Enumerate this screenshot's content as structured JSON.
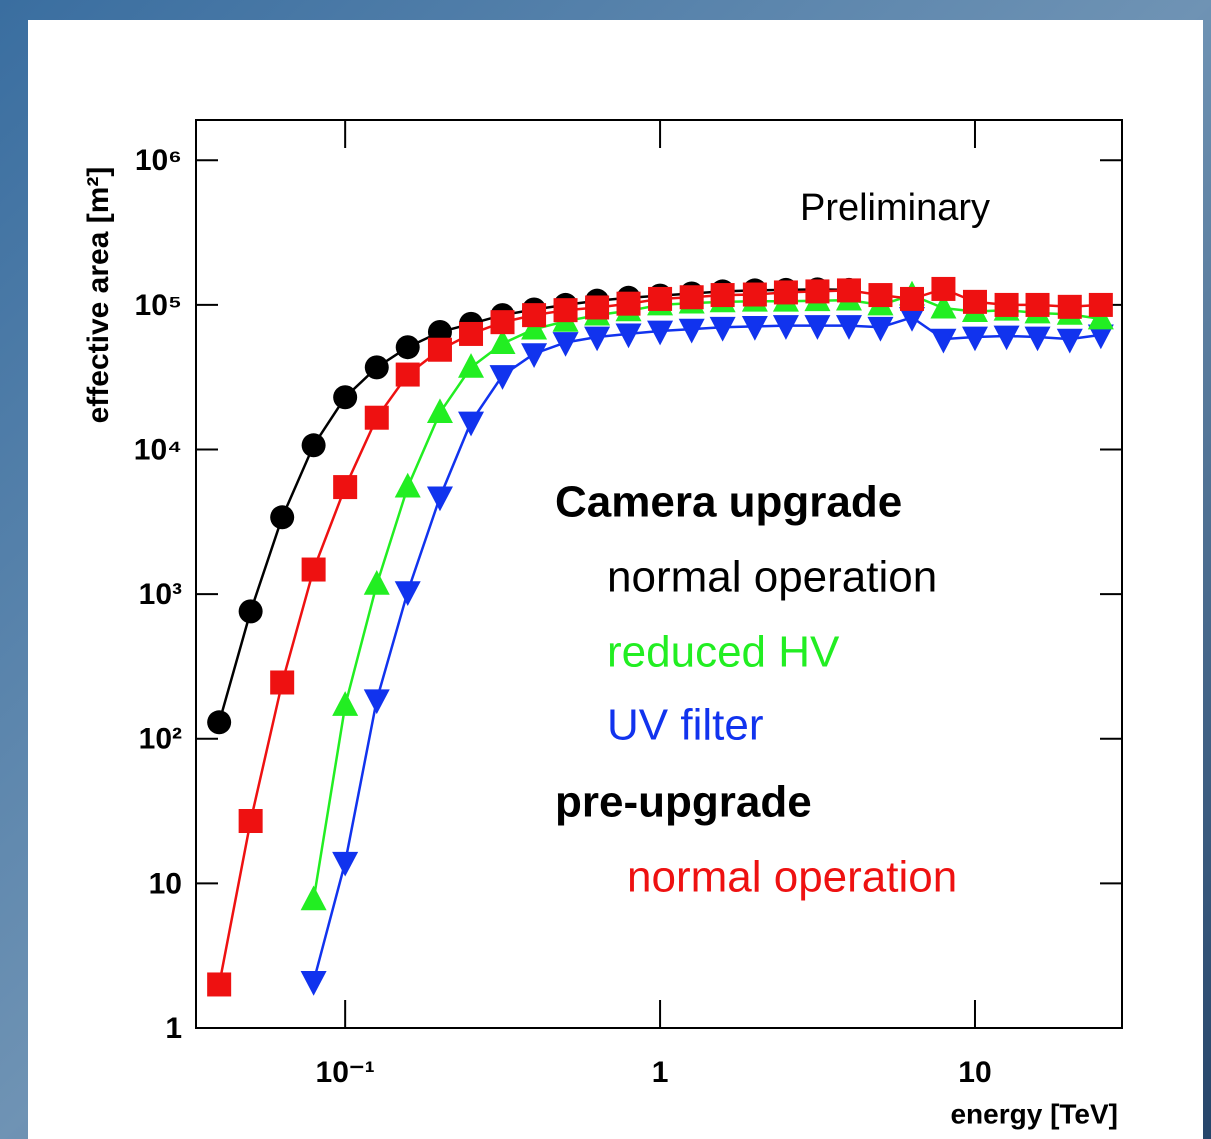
{
  "chart_data": {
    "type": "line",
    "log_x": true,
    "log_y": true,
    "annotation": "Preliminary",
    "xlabel": "energy [TeV]",
    "ylabel": "effective area [m²]",
    "xlim": [
      0.0336,
      29.3
    ],
    "ylim": [
      1,
      1900000
    ],
    "xticks": [
      {
        "value": 0.1,
        "label": "10⁻¹"
      },
      1,
      10
    ],
    "yticks": [
      1,
      10,
      {
        "value": 100,
        "label": "10²"
      },
      {
        "value": 1000,
        "label": "10³"
      },
      {
        "value": 10000,
        "label": "10⁴"
      },
      {
        "value": 100000,
        "label": "10⁵"
      },
      {
        "value": 1000000,
        "label": "10⁶"
      }
    ],
    "legend_groups": [
      "Camera upgrade",
      "pre-upgrade"
    ],
    "series": [
      {
        "name": "normal operation",
        "color": "#000000",
        "marker": "circle",
        "x": [
          0.0398,
          0.0501,
          0.0631,
          0.0794,
          0.1,
          0.126,
          0.158,
          0.2,
          0.251,
          0.316,
          0.398,
          0.501,
          0.631,
          0.794,
          1,
          1.26,
          1.58,
          2,
          2.51,
          3.16,
          3.98
        ],
        "values": [
          130,
          760,
          3400,
          10700,
          23000,
          37000,
          51000,
          65000,
          74000,
          85000,
          93000,
          100000,
          107000,
          112000,
          116000,
          120000,
          124000,
          126000,
          127000,
          128000,
          127000
        ]
      },
      {
        "name": "UV filter",
        "color": "#1133ee",
        "marker": "triangle-down",
        "x": [
          0.0794,
          0.1,
          0.126,
          0.158,
          0.2,
          0.251,
          0.316,
          0.398,
          0.501,
          0.631,
          0.794,
          1,
          1.26,
          1.58,
          2,
          2.51,
          3.16,
          3.98,
          5.01,
          6.31,
          7.94,
          10,
          12.6,
          15.8,
          20,
          25.1
        ],
        "values": [
          2.1,
          14,
          186,
          1040,
          4700,
          15500,
          32500,
          46000,
          55000,
          60000,
          63000,
          66000,
          68000,
          70000,
          71000,
          72000,
          72000,
          72000,
          70000,
          82000,
          58000,
          60000,
          61000,
          60000,
          58000,
          62000
        ]
      },
      {
        "name": "reduced HV",
        "color": "#22ee22",
        "marker": "triangle-up",
        "x": [
          0.0794,
          0.1,
          0.126,
          0.158,
          0.2,
          0.251,
          0.316,
          0.398,
          0.501,
          0.631,
          0.794,
          1,
          1.26,
          1.58,
          2,
          2.51,
          3.16,
          3.98,
          5.01,
          6.31,
          7.94,
          10,
          12.6,
          15.8,
          20,
          25.1
        ],
        "values": [
          7.7,
          170,
          1170,
          5500,
          18000,
          37000,
          54000,
          68000,
          77000,
          85000,
          91000,
          100000,
          103000,
          105000,
          106000,
          106000,
          107000,
          108000,
          100000,
          117000,
          95000,
          90000,
          92000,
          88000,
          86000,
          80000
        ]
      },
      {
        "name": "normal operation",
        "color": "#ee1111",
        "marker": "square",
        "x": [
          0.0398,
          0.0501,
          0.0631,
          0.0794,
          0.1,
          0.126,
          0.158,
          0.2,
          0.251,
          0.316,
          0.398,
          0.501,
          0.631,
          0.794,
          1,
          1.26,
          1.58,
          2,
          2.51,
          3.16,
          3.98,
          5.01,
          6.31,
          7.94,
          10,
          12.6,
          15.8,
          20,
          25.1
        ],
        "values": [
          2.0,
          27,
          245,
          1480,
          5500,
          16600,
          33000,
          49000,
          63000,
          76000,
          85000,
          92000,
          96000,
          102000,
          110000,
          113000,
          117000,
          118000,
          122000,
          124000,
          126000,
          117000,
          110000,
          129000,
          105000,
          100000,
          100000,
          97000,
          100000
        ]
      }
    ]
  }
}
